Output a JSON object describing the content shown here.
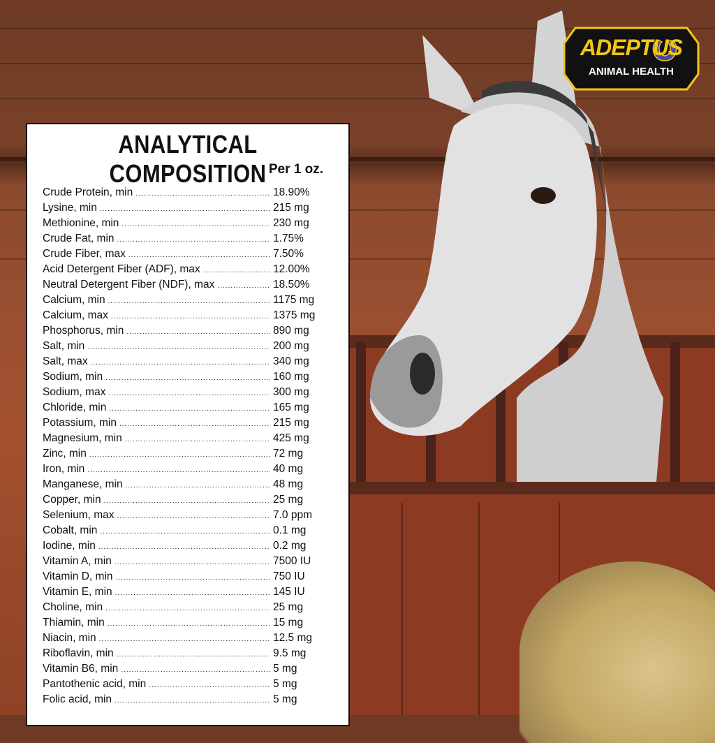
{
  "logo": {
    "brand": "ADEPTUS",
    "subtitle": "ANIMAL HEALTH",
    "colors": {
      "yellow": "#f2c617",
      "black": "#111111",
      "horseshoe": "#4a4aa0"
    }
  },
  "panel": {
    "title": "ANALYTICAL COMPOSITION",
    "per": "Per 1 oz.",
    "rows": [
      {
        "label": "Crude Protein, min",
        "value": "18.90%"
      },
      {
        "label": "Lysine, min",
        "value": "215 mg"
      },
      {
        "label": "Methionine, min",
        "value": "230 mg"
      },
      {
        "label": "Crude Fat, min",
        "value": "1.75%"
      },
      {
        "label": "Crude Fiber, max",
        "value": "7.50%"
      },
      {
        "label": "Acid Detergent Fiber (ADF), max",
        "value": "12.00%"
      },
      {
        "label": "Neutral Detergent Fiber (NDF), max",
        "value": "18.50%"
      },
      {
        "label": "Calcium, min",
        "value": "1175 mg"
      },
      {
        "label": "Calcium, max",
        "value": "1375 mg"
      },
      {
        "label": "Phosphorus, min",
        "value": "890 mg"
      },
      {
        "label": "Salt, min",
        "value": "200 mg"
      },
      {
        "label": "Salt, max",
        "value": "340 mg"
      },
      {
        "label": "Sodium, min",
        "value": "160 mg"
      },
      {
        "label": "Sodium, max",
        "value": "300 mg"
      },
      {
        "label": "Chloride, min",
        "value": "165 mg"
      },
      {
        "label": "Potassium, min",
        "value": "215 mg"
      },
      {
        "label": "Magnesium, min",
        "value": "425 mg"
      },
      {
        "label": "Zinc, min",
        "value": "72 mg"
      },
      {
        "label": "Iron, min",
        "value": "40 mg"
      },
      {
        "label": "Manganese, min",
        "value": "48 mg"
      },
      {
        "label": "Copper, min",
        "value": "25 mg"
      },
      {
        "label": "Selenium, max",
        "value": "7.0 ppm"
      },
      {
        "label": "Cobalt, min",
        "value": "0.1 mg"
      },
      {
        "label": "Iodine, min",
        "value": "0.2 mg"
      },
      {
        "label": "Vitamin A, min",
        "value": "7500 IU"
      },
      {
        "label": "Vitamin D, min",
        "value": "750 IU"
      },
      {
        "label": "Vitamin E, min",
        "value": "145 IU"
      },
      {
        "label": "Choline, min",
        "value": "25 mg"
      },
      {
        "label": "Thiamin, min",
        "value": "15 mg"
      },
      {
        "label": "Niacin, min",
        "value": "12.5 mg"
      },
      {
        "label": "Riboflavin, min",
        "value": "9.5 mg"
      },
      {
        "label": "Vitamin B6, min",
        "value": "5 mg"
      },
      {
        "label": "Pantothenic acid, min",
        "value": "5 mg"
      },
      {
        "label": "Folic acid, min",
        "value": "5 mg"
      }
    ]
  }
}
